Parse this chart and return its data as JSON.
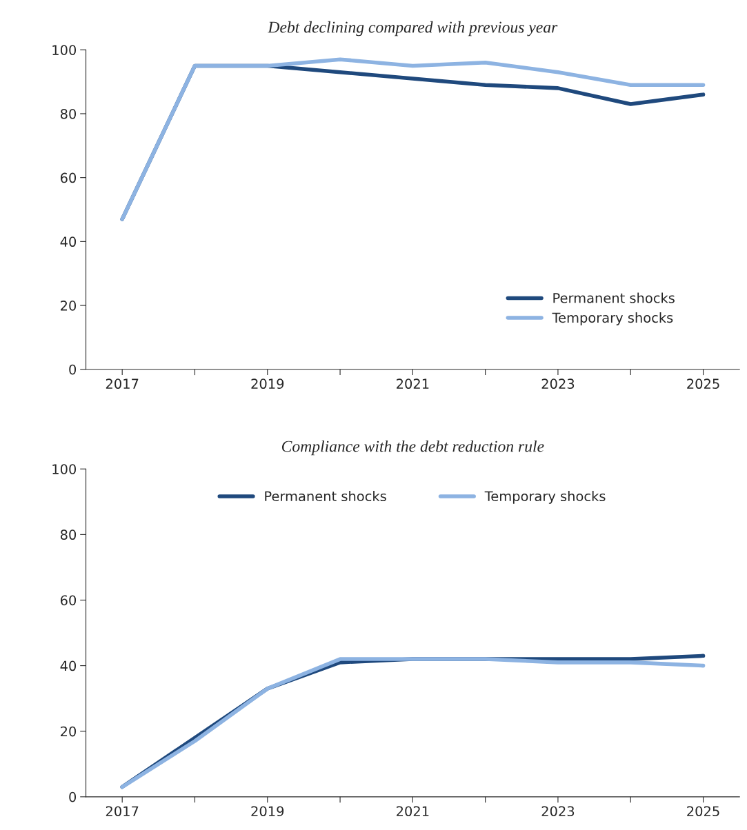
{
  "chart_data": [
    {
      "type": "line",
      "title": "Debt declining compared with previous year",
      "categories": [
        "2017",
        null,
        "2019",
        null,
        "2021",
        null,
        "2023",
        null,
        "2025"
      ],
      "series": [
        {
          "name": "Permanent shocks",
          "color": "#1f497d",
          "values": [
            47,
            95,
            95,
            93,
            91,
            89,
            88,
            83,
            86
          ]
        },
        {
          "name": "Temporary shocks",
          "color": "#8db3e2",
          "values": [
            47,
            95,
            95,
            97,
            95,
            96,
            93,
            89,
            89
          ]
        }
      ],
      "ylim": [
        0,
        100
      ],
      "yticks": [
        0,
        20,
        40,
        60,
        80,
        100
      ],
      "grid": false,
      "legend": "bottom right",
      "line_style": "solid",
      "marker": "none"
    },
    {
      "type": "line",
      "title": "Compliance with the debt reduction rule",
      "categories": [
        "2017",
        null,
        "2019",
        null,
        "2021",
        null,
        "2023",
        null,
        "2025"
      ],
      "series": [
        {
          "name": "Permanent shocks",
          "color": "#1f497d",
          "values": [
            3,
            18,
            33,
            41,
            42,
            42,
            42,
            42,
            43
          ]
        },
        {
          "name": "Temporary shocks",
          "color": "#8db3e2",
          "values": [
            3,
            17,
            33,
            42,
            42,
            42,
            41,
            41,
            40
          ]
        }
      ],
      "ylim": [
        0,
        100
      ],
      "yticks": [
        0,
        20,
        40,
        60,
        80,
        100
      ],
      "grid": false,
      "legend": "top",
      "line_style": "solid",
      "marker": "none"
    }
  ]
}
